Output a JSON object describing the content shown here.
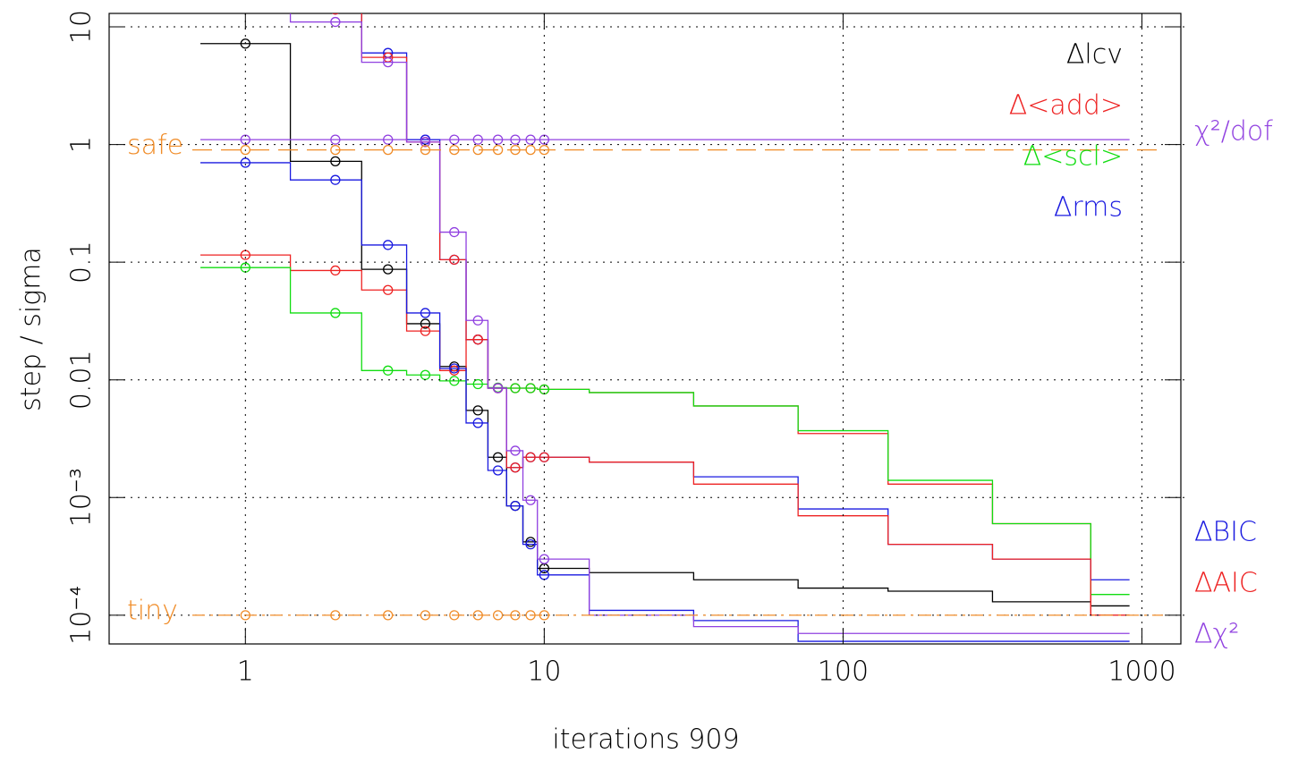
{
  "chart_data": {
    "type": "step",
    "xlabel": "iterations 909",
    "ylabel": "step / sigma",
    "xscale": "log",
    "yscale": "log",
    "xlim": [
      0.35,
      1350
    ],
    "ylim": [
      5.7e-05,
      13
    ],
    "xticks": [
      1,
      10,
      100,
      1000
    ],
    "yticks": [
      10,
      1,
      0.1,
      0.01,
      {
        "value": 0.001,
        "label": "10⁻³"
      },
      {
        "value": 0.0001,
        "label": "10⁻⁴"
      }
    ],
    "grid": true,
    "x": [
      1,
      2,
      3,
      4,
      5,
      6,
      7,
      8,
      9,
      10,
      20,
      50,
      100,
      200,
      500,
      909
    ],
    "series": [
      {
        "name": "Δlcv",
        "color": "#000000",
        "values": [
          7.2,
          0.72,
          0.087,
          0.03,
          0.013,
          0.0055,
          0.0022,
          0.00085,
          0.00042,
          0.00025,
          0.00023,
          0.0002,
          0.00017,
          0.00016,
          0.00013,
          0.00012
        ]
      },
      {
        "name": "Δ<add>",
        "color": "#ee2222",
        "values": [
          0.115,
          0.085,
          0.058,
          0.026,
          0.012,
          0.022,
          0.0085,
          0.0085,
          0.0085,
          0.0083,
          0.0078,
          0.006,
          0.0035,
          0.0013,
          0.0006,
          0.0001
        ]
      },
      {
        "name": "Δ<scl>",
        "color": "#11dd11",
        "values": [
          0.09,
          0.037,
          0.012,
          0.011,
          0.0098,
          0.0092,
          0.0086,
          0.0085,
          0.0085,
          0.0083,
          0.0078,
          0.006,
          0.0037,
          0.0014,
          0.0006,
          0.00015
        ]
      },
      {
        "name": "Δrms",
        "color": "#1a1ae0",
        "values": [
          0.7,
          0.5,
          0.14,
          0.037,
          0.0125,
          0.0043,
          0.0017,
          0.00085,
          0.0004,
          0.00022,
          0.00011,
          9e-05,
          6e-05,
          6e-05,
          6e-05,
          6e-05
        ]
      },
      {
        "name": "χ²/dof",
        "color": "#9040e0",
        "values": [
          1.1,
          1.1,
          1.1,
          1.1,
          1.1,
          1.1,
          1.1,
          1.1,
          1.1,
          1.1,
          1.1,
          1.1,
          1.1,
          1.1,
          1.1,
          1.1
        ]
      },
      {
        "name": "ΔBIC",
        "color": "#1a1ae0",
        "values": [
          20,
          14,
          6,
          1.1,
          0.105,
          0.022,
          0.0085,
          0.0018,
          0.0022,
          0.0022,
          0.002,
          0.0015,
          0.0008,
          0.0004,
          0.0003,
          0.0002
        ]
      },
      {
        "name": "ΔAIC",
        "color": "#ee2222",
        "values": [
          20,
          14,
          5.5,
          1.05,
          0.105,
          0.022,
          0.0085,
          0.0018,
          0.0022,
          0.0022,
          0.002,
          0.0013,
          0.0007,
          0.0004,
          0.0003,
          0.0001
        ]
      },
      {
        "name": "Δχ²",
        "color": "#9040e0",
        "values": [
          20,
          11,
          5,
          1.05,
          0.18,
          0.032,
          0.0085,
          0.0025,
          0.00095,
          0.0003,
          0.0001,
          8e-05,
          7e-05,
          7e-05,
          7e-05,
          7e-05
        ]
      }
    ],
    "reference_lines": [
      {
        "label": "safe",
        "value": 0.9,
        "style": "dashed",
        "color": "#f08c28"
      },
      {
        "label": "tiny",
        "value": 0.0001,
        "style": "dashdot",
        "color": "#f08c28"
      }
    ]
  }
}
